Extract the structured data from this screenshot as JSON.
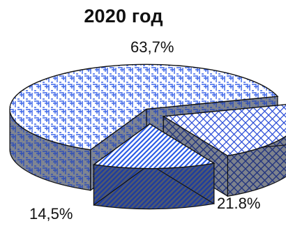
{
  "chart_data": {
    "type": "pie",
    "title": "2020 год",
    "slices": [
      {
        "label": "63,7%",
        "value": 63.7,
        "color": "#3a64e8"
      },
      {
        "label": "21.8%",
        "value": 21.8,
        "color": "#2d4fd8"
      },
      {
        "label": "14,5%",
        "value": 14.5,
        "color": "#2c5ce6"
      }
    ],
    "style": "3d-exploded",
    "legend": "none"
  }
}
